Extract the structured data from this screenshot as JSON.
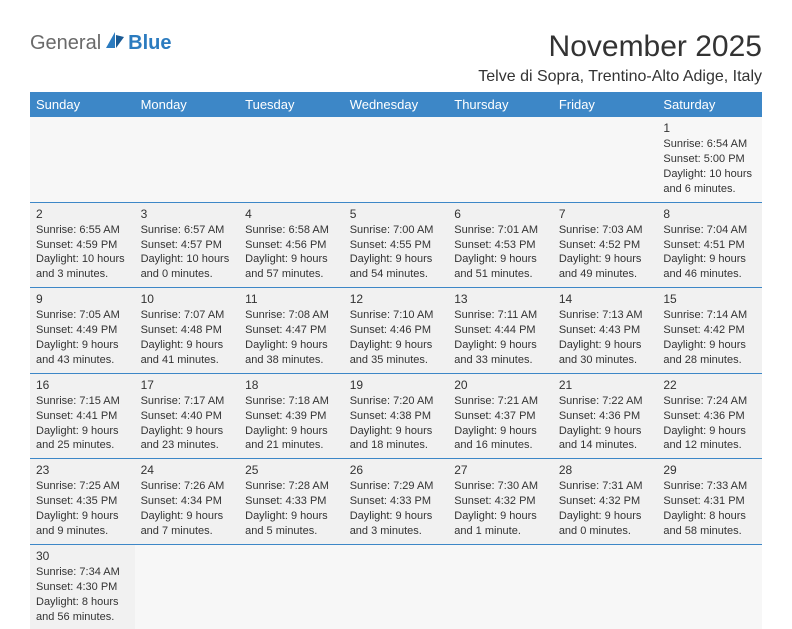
{
  "logo": {
    "text1": "General",
    "text2": "Blue"
  },
  "title": "November 2025",
  "location": "Telve di Sopra, Trentino-Alto Adige, Italy",
  "colors": {
    "header_bg": "#3d87c7",
    "header_fg": "#ffffff",
    "cell_bg": "#f1f1f1",
    "empty_bg": "#f7f7f7",
    "border": "#3d87c7",
    "text": "#333333"
  },
  "days": [
    "Sunday",
    "Monday",
    "Tuesday",
    "Wednesday",
    "Thursday",
    "Friday",
    "Saturday"
  ],
  "weeks": [
    [
      null,
      null,
      null,
      null,
      null,
      null,
      {
        "n": "1",
        "sr": "Sunrise: 6:54 AM",
        "ss": "Sunset: 5:00 PM",
        "dl1": "Daylight: 10 hours",
        "dl2": "and 6 minutes."
      }
    ],
    [
      {
        "n": "2",
        "sr": "Sunrise: 6:55 AM",
        "ss": "Sunset: 4:59 PM",
        "dl1": "Daylight: 10 hours",
        "dl2": "and 3 minutes."
      },
      {
        "n": "3",
        "sr": "Sunrise: 6:57 AM",
        "ss": "Sunset: 4:57 PM",
        "dl1": "Daylight: 10 hours",
        "dl2": "and 0 minutes."
      },
      {
        "n": "4",
        "sr": "Sunrise: 6:58 AM",
        "ss": "Sunset: 4:56 PM",
        "dl1": "Daylight: 9 hours",
        "dl2": "and 57 minutes."
      },
      {
        "n": "5",
        "sr": "Sunrise: 7:00 AM",
        "ss": "Sunset: 4:55 PM",
        "dl1": "Daylight: 9 hours",
        "dl2": "and 54 minutes."
      },
      {
        "n": "6",
        "sr": "Sunrise: 7:01 AM",
        "ss": "Sunset: 4:53 PM",
        "dl1": "Daylight: 9 hours",
        "dl2": "and 51 minutes."
      },
      {
        "n": "7",
        "sr": "Sunrise: 7:03 AM",
        "ss": "Sunset: 4:52 PM",
        "dl1": "Daylight: 9 hours",
        "dl2": "and 49 minutes."
      },
      {
        "n": "8",
        "sr": "Sunrise: 7:04 AM",
        "ss": "Sunset: 4:51 PM",
        "dl1": "Daylight: 9 hours",
        "dl2": "and 46 minutes."
      }
    ],
    [
      {
        "n": "9",
        "sr": "Sunrise: 7:05 AM",
        "ss": "Sunset: 4:49 PM",
        "dl1": "Daylight: 9 hours",
        "dl2": "and 43 minutes."
      },
      {
        "n": "10",
        "sr": "Sunrise: 7:07 AM",
        "ss": "Sunset: 4:48 PM",
        "dl1": "Daylight: 9 hours",
        "dl2": "and 41 minutes."
      },
      {
        "n": "11",
        "sr": "Sunrise: 7:08 AM",
        "ss": "Sunset: 4:47 PM",
        "dl1": "Daylight: 9 hours",
        "dl2": "and 38 minutes."
      },
      {
        "n": "12",
        "sr": "Sunrise: 7:10 AM",
        "ss": "Sunset: 4:46 PM",
        "dl1": "Daylight: 9 hours",
        "dl2": "and 35 minutes."
      },
      {
        "n": "13",
        "sr": "Sunrise: 7:11 AM",
        "ss": "Sunset: 4:44 PM",
        "dl1": "Daylight: 9 hours",
        "dl2": "and 33 minutes."
      },
      {
        "n": "14",
        "sr": "Sunrise: 7:13 AM",
        "ss": "Sunset: 4:43 PM",
        "dl1": "Daylight: 9 hours",
        "dl2": "and 30 minutes."
      },
      {
        "n": "15",
        "sr": "Sunrise: 7:14 AM",
        "ss": "Sunset: 4:42 PM",
        "dl1": "Daylight: 9 hours",
        "dl2": "and 28 minutes."
      }
    ],
    [
      {
        "n": "16",
        "sr": "Sunrise: 7:15 AM",
        "ss": "Sunset: 4:41 PM",
        "dl1": "Daylight: 9 hours",
        "dl2": "and 25 minutes."
      },
      {
        "n": "17",
        "sr": "Sunrise: 7:17 AM",
        "ss": "Sunset: 4:40 PM",
        "dl1": "Daylight: 9 hours",
        "dl2": "and 23 minutes."
      },
      {
        "n": "18",
        "sr": "Sunrise: 7:18 AM",
        "ss": "Sunset: 4:39 PM",
        "dl1": "Daylight: 9 hours",
        "dl2": "and 21 minutes."
      },
      {
        "n": "19",
        "sr": "Sunrise: 7:20 AM",
        "ss": "Sunset: 4:38 PM",
        "dl1": "Daylight: 9 hours",
        "dl2": "and 18 minutes."
      },
      {
        "n": "20",
        "sr": "Sunrise: 7:21 AM",
        "ss": "Sunset: 4:37 PM",
        "dl1": "Daylight: 9 hours",
        "dl2": "and 16 minutes."
      },
      {
        "n": "21",
        "sr": "Sunrise: 7:22 AM",
        "ss": "Sunset: 4:36 PM",
        "dl1": "Daylight: 9 hours",
        "dl2": "and 14 minutes."
      },
      {
        "n": "22",
        "sr": "Sunrise: 7:24 AM",
        "ss": "Sunset: 4:36 PM",
        "dl1": "Daylight: 9 hours",
        "dl2": "and 12 minutes."
      }
    ],
    [
      {
        "n": "23",
        "sr": "Sunrise: 7:25 AM",
        "ss": "Sunset: 4:35 PM",
        "dl1": "Daylight: 9 hours",
        "dl2": "and 9 minutes."
      },
      {
        "n": "24",
        "sr": "Sunrise: 7:26 AM",
        "ss": "Sunset: 4:34 PM",
        "dl1": "Daylight: 9 hours",
        "dl2": "and 7 minutes."
      },
      {
        "n": "25",
        "sr": "Sunrise: 7:28 AM",
        "ss": "Sunset: 4:33 PM",
        "dl1": "Daylight: 9 hours",
        "dl2": "and 5 minutes."
      },
      {
        "n": "26",
        "sr": "Sunrise: 7:29 AM",
        "ss": "Sunset: 4:33 PM",
        "dl1": "Daylight: 9 hours",
        "dl2": "and 3 minutes."
      },
      {
        "n": "27",
        "sr": "Sunrise: 7:30 AM",
        "ss": "Sunset: 4:32 PM",
        "dl1": "Daylight: 9 hours",
        "dl2": "and 1 minute."
      },
      {
        "n": "28",
        "sr": "Sunrise: 7:31 AM",
        "ss": "Sunset: 4:32 PM",
        "dl1": "Daylight: 9 hours",
        "dl2": "and 0 minutes."
      },
      {
        "n": "29",
        "sr": "Sunrise: 7:33 AM",
        "ss": "Sunset: 4:31 PM",
        "dl1": "Daylight: 8 hours",
        "dl2": "and 58 minutes."
      }
    ],
    [
      {
        "n": "30",
        "sr": "Sunrise: 7:34 AM",
        "ss": "Sunset: 4:30 PM",
        "dl1": "Daylight: 8 hours",
        "dl2": "and 56 minutes."
      },
      null,
      null,
      null,
      null,
      null,
      null
    ]
  ]
}
